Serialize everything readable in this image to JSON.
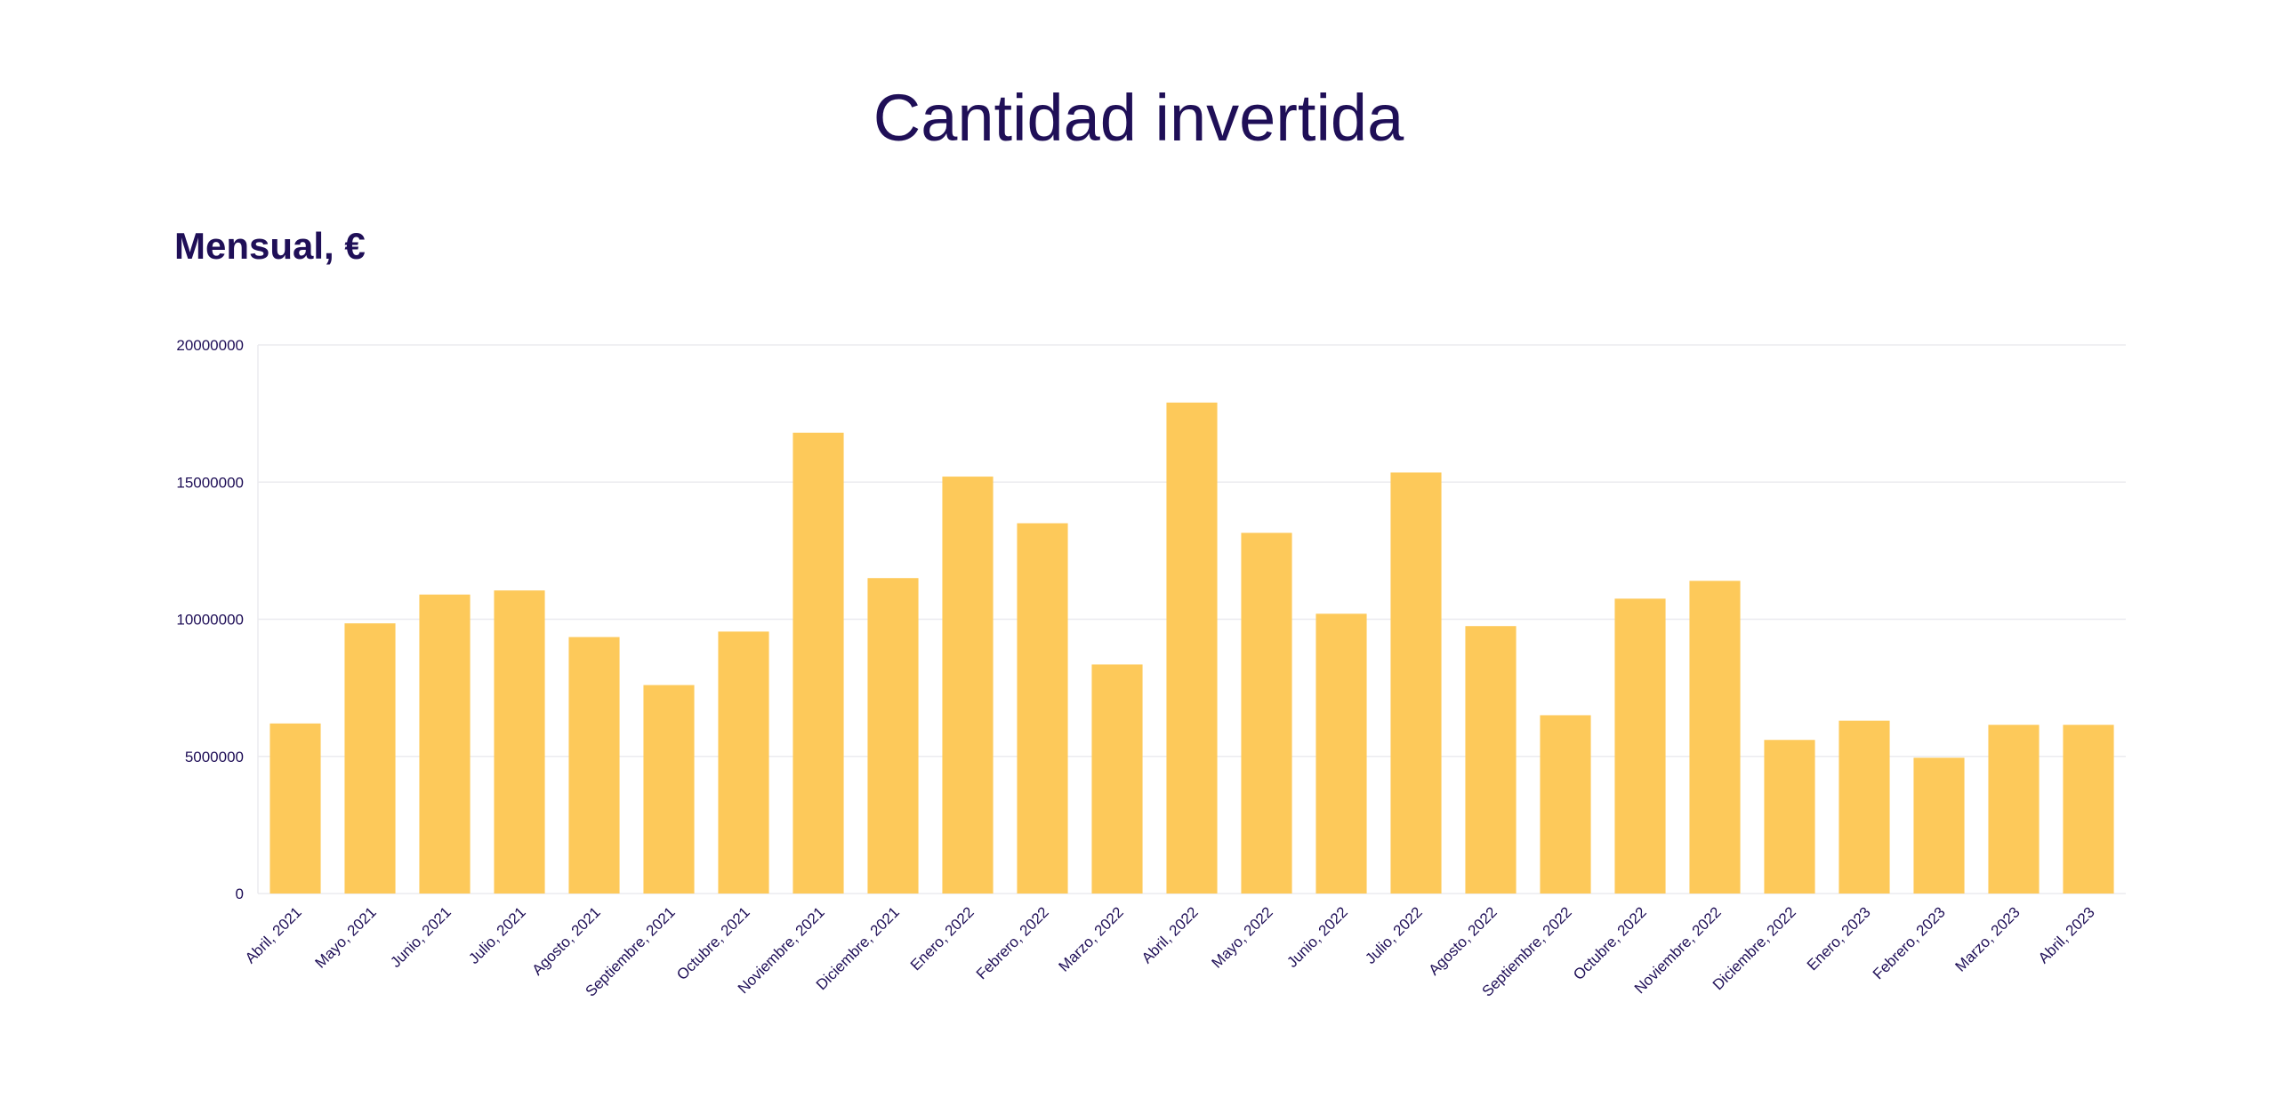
{
  "page": {
    "title": "Cantidad invertida"
  },
  "chart_data": {
    "type": "bar",
    "title": "Cantidad invertida",
    "subtitle": "Mensual, €",
    "xlabel": "",
    "ylabel": "",
    "ylim": [
      0,
      20000000
    ],
    "yticks": [
      0,
      5000000,
      10000000,
      15000000,
      20000000
    ],
    "grid": true,
    "bar_color": "#fdc95a",
    "text_color": "#1f0f57",
    "categories": [
      "Abril, 2021",
      "Mayo, 2021",
      "Junio, 2021",
      "Julio, 2021",
      "Agosto, 2021",
      "Septiembre, 2021",
      "Octubre, 2021",
      "Noviembre, 2021",
      "Diciembre, 2021",
      "Enero, 2022",
      "Febrero, 2022",
      "Marzo, 2022",
      "Abril, 2022",
      "Mayo, 2022",
      "Junio, 2022",
      "Julio, 2022",
      "Agosto, 2022",
      "Septiembre, 2022",
      "Octubre, 2022",
      "Noviembre, 2022",
      "Diciembre, 2022",
      "Enero, 2023",
      "Febrero, 2023",
      "Marzo, 2023",
      "Abril, 2023"
    ],
    "values": [
      6200000,
      9850000,
      10900000,
      11050000,
      9350000,
      7600000,
      9550000,
      16800000,
      11500000,
      15200000,
      13500000,
      8350000,
      17900000,
      13150000,
      10200000,
      15350000,
      9750000,
      6500000,
      10750000,
      11400000,
      5600000,
      6300000,
      4950000,
      6150000,
      6150000
    ]
  }
}
